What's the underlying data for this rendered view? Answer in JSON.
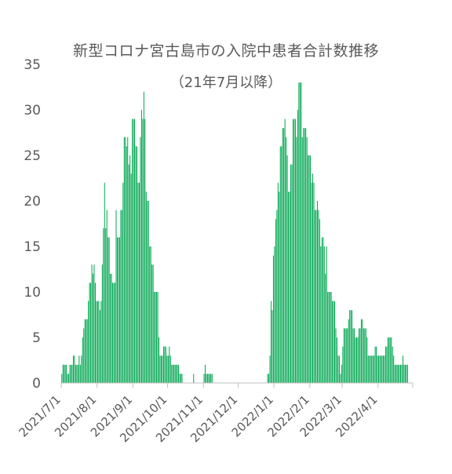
{
  "chart_data": {
    "type": "bar",
    "title": "新型コロナ宮古島市の入院中患者合計数推移",
    "subtitle": "（21年7月以降）",
    "xlabel": "",
    "ylabel": "",
    "ylim": [
      0,
      35
    ],
    "yticks": [
      0,
      5,
      10,
      15,
      20,
      25,
      30,
      35
    ],
    "grid": false,
    "legend": "none",
    "bar_color": "#00a650",
    "x_start": "2021/7/1",
    "x_end": "2022/4/30",
    "xtick_labels": [
      "2021/7/1",
      "2021/8/1",
      "2021/9/1",
      "2021/10/1",
      "2021/11/1",
      "2021/12/1",
      "2022/1/1",
      "2022/2/1",
      "2022/3/1",
      "2022/4/1"
    ],
    "segments": [
      {
        "start": "2021/7/1",
        "values": [
          1,
          2,
          2,
          2,
          2,
          1,
          1,
          2,
          2,
          2,
          3,
          3,
          2,
          2,
          2,
          3,
          2,
          3,
          5,
          6,
          7,
          7,
          7,
          9,
          11,
          11,
          13,
          12,
          13,
          11,
          9,
          9,
          9,
          8,
          9,
          13,
          17,
          22,
          17,
          19,
          16,
          16,
          12,
          12,
          11,
          11,
          11,
          19,
          16,
          16,
          16,
          19,
          19,
          22,
          27,
          27,
          26,
          27,
          24,
          25,
          23,
          29,
          29,
          29,
          26,
          26,
          22,
          22,
          27,
          30,
          29,
          32,
          29,
          21,
          20,
          20,
          15,
          15,
          13,
          13,
          10,
          10,
          10,
          10,
          5,
          3,
          3,
          3,
          4,
          4,
          4,
          3,
          3,
          4,
          3,
          2,
          2,
          2,
          2,
          2,
          2,
          2,
          1,
          1,
          1
        ]
      },
      {
        "start": "2021/10/23",
        "values": [
          1
        ]
      },
      {
        "start": "2021/11/1",
        "values": [
          1,
          2,
          1,
          1,
          1,
          1,
          1,
          1
        ]
      },
      {
        "start": "2021/12/26",
        "values": [
          1,
          1,
          3,
          9,
          8,
          14,
          15,
          18,
          19,
          22,
          21,
          26,
          26,
          28,
          28,
          29,
          27,
          25,
          21,
          21,
          24,
          24,
          29,
          29,
          29,
          27,
          30,
          33,
          33,
          33,
          27,
          28,
          28,
          28,
          27,
          25,
          25,
          25,
          22,
          23,
          22,
          19,
          19,
          20,
          19,
          18,
          15,
          16,
          16,
          15,
          12,
          15,
          10,
          10,
          10,
          10,
          9,
          9,
          9,
          6,
          5,
          3,
          3,
          1,
          2,
          4,
          6,
          6,
          6,
          6,
          7,
          8,
          8,
          8,
          6,
          6,
          5,
          5,
          5,
          6,
          6,
          7,
          7,
          6,
          6,
          6,
          5,
          3,
          3,
          3,
          3,
          3,
          3,
          4,
          4,
          3,
          3,
          3,
          3,
          3,
          3,
          3,
          4,
          4,
          5,
          5,
          5,
          5,
          4,
          3,
          2,
          2,
          2,
          2,
          2,
          2,
          2,
          3,
          2,
          2,
          2,
          2
        ]
      }
    ]
  }
}
